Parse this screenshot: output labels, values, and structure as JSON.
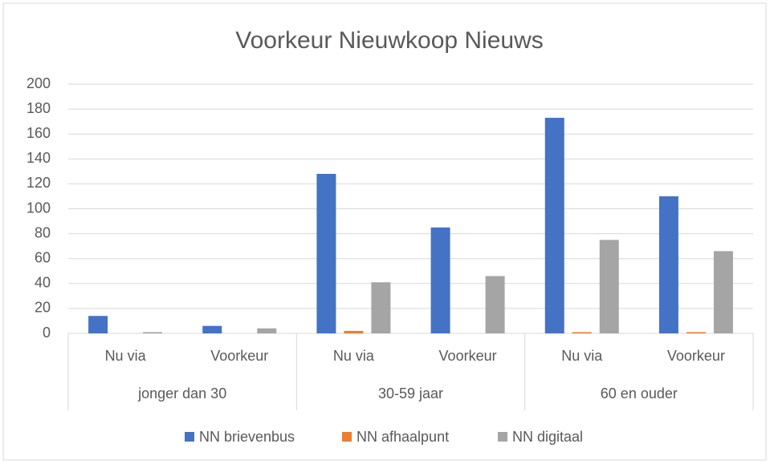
{
  "chart_data": {
    "type": "bar",
    "title": "Voorkeur Nieuwkoop Nieuws",
    "categories": [
      "Nu via",
      "Voorkeur",
      "Nu via",
      "Voorkeur",
      "Nu via",
      "Voorkeur"
    ],
    "category_groups": [
      "jonger dan 30",
      "30-59 jaar",
      "60 en ouder"
    ],
    "series": [
      {
        "name": "NN brievenbus",
        "color": "#4472c4",
        "values": [
          14,
          6,
          128,
          85,
          173,
          110
        ]
      },
      {
        "name": "NN afhaalpunt",
        "color": "#ed7d31",
        "values": [
          0,
          0,
          2,
          0,
          1,
          1
        ]
      },
      {
        "name": "NN digitaal",
        "color": "#a5a5a5",
        "values": [
          1,
          4,
          41,
          46,
          75,
          66
        ]
      }
    ],
    "ylim": [
      0,
      200
    ],
    "yticks": [
      0,
      20,
      40,
      60,
      80,
      100,
      120,
      140,
      160,
      180,
      200
    ],
    "grid": true,
    "legend": "bottom"
  }
}
